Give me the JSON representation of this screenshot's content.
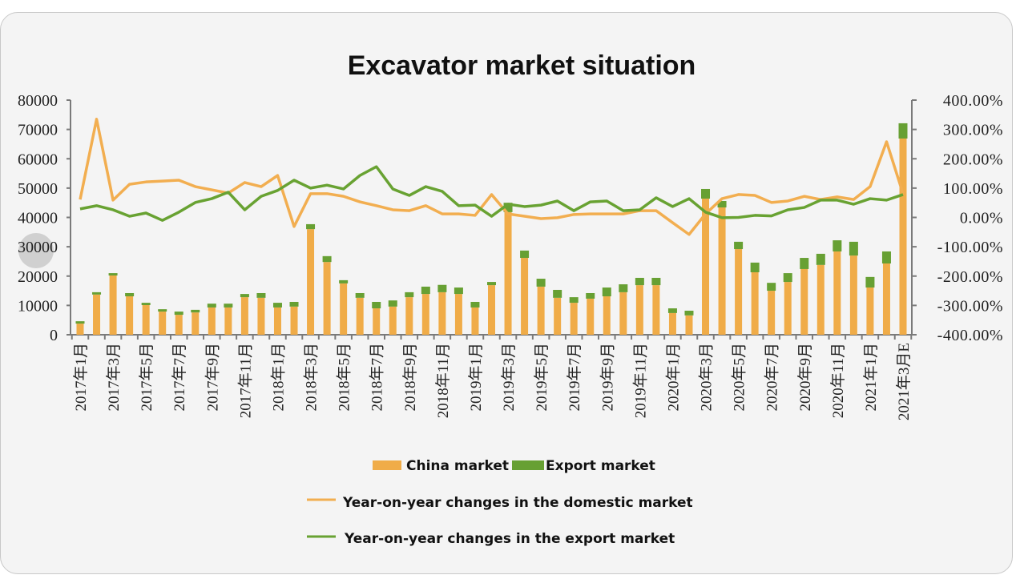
{
  "chart_data": {
    "type": "bar",
    "title": "Excavator market situation",
    "x_tick_labels": [
      "2017年1月",
      "2017年3月",
      "2017年5月",
      "2017年7月",
      "2017年9月",
      "2017年11月",
      "2018年1月",
      "2018年3月",
      "2018年5月",
      "2018年7月",
      "2018年9月",
      "2018年11月",
      "2019年1月",
      "2019年3月",
      "2019年5月",
      "2019年7月",
      "2019年9月",
      "2019年11月",
      "2020年1月",
      "2020年3月",
      "2020年5月",
      "2020年7月",
      "2020年9月",
      "2020年11月",
      "2021年1月",
      "2021年3月E"
    ],
    "left_axis": {
      "range": [
        0,
        80000
      ],
      "ticks": [
        "0",
        "10000",
        "20000",
        "30000",
        "40000",
        "50000",
        "60000",
        "70000",
        "80000"
      ]
    },
    "right_axis": {
      "range": [
        -400,
        400
      ],
      "unit": "%",
      "ticks": [
        "-400.00%",
        "-300.00%",
        "-200.00%",
        "-100.00%",
        "0.00%",
        "100.00%",
        "200.00%",
        "300.00%",
        "400.00%"
      ]
    },
    "bar_series": [
      {
        "name": "China market",
        "color": "#F0AC48",
        "stacked": true,
        "values": [
          3800,
          13700,
          20200,
          13100,
          10100,
          7900,
          6800,
          7600,
          9300,
          9300,
          12800,
          12600,
          9300,
          9600,
          36000,
          24800,
          17500,
          12600,
          9000,
          9600,
          12800,
          13900,
          14500,
          13900,
          9300,
          16900,
          41800,
          26200,
          16400,
          12600,
          10900,
          12300,
          13100,
          14500,
          16900,
          16900,
          7400,
          6600,
          46400,
          43400,
          29200,
          21300,
          15000,
          18000,
          22400,
          23800,
          28400,
          27000,
          16100,
          24300,
          66900
        ]
      },
      {
        "name": "Export market",
        "color": "#67A033",
        "stacked": true,
        "values": [
          800,
          800,
          800,
          1100,
          800,
          800,
          1100,
          900,
          1300,
          1300,
          1100,
          1600,
          1600,
          1600,
          1700,
          2000,
          1100,
          1600,
          2200,
          2100,
          1700,
          2500,
          2500,
          2200,
          1900,
          1100,
          3200,
          2500,
          2700,
          2700,
          1900,
          1900,
          3000,
          2700,
          2500,
          2500,
          1600,
          1600,
          3300,
          2200,
          2500,
          3300,
          2700,
          3000,
          3800,
          3800,
          3800,
          4700,
          3600,
          4100,
          5200
        ]
      }
    ],
    "line_series": [
      {
        "name": "Year-on-year changes in the domestic market",
        "color": "#F2AE50",
        "axis": "right",
        "values": [
          61,
          335,
          59,
          113,
          121,
          124,
          127,
          105,
          94,
          83,
          119,
          105,
          143,
          -31,
          81,
          81,
          72,
          53,
          40,
          26,
          23,
          40,
          12,
          12,
          7,
          78,
          12,
          4,
          -4,
          -1,
          10,
          12,
          12,
          12,
          23,
          23,
          -18,
          -58,
          12,
          64,
          78,
          75,
          51,
          56,
          72,
          61,
          70,
          61,
          105,
          258,
          81
        ]
      },
      {
        "name": "Year-on-year changes in the export market",
        "color": "#68A232",
        "axis": "right",
        "values": [
          29,
          40,
          26,
          4,
          15,
          -10,
          18,
          51,
          64,
          86,
          26,
          72,
          92,
          127,
          100,
          110,
          97,
          143,
          173,
          97,
          75,
          105,
          89,
          40,
          42,
          4,
          45,
          37,
          42,
          56,
          23,
          53,
          56,
          23,
          26,
          67,
          37,
          64,
          18,
          -1,
          0,
          7,
          5,
          26,
          34,
          59,
          59,
          45,
          64,
          59,
          78
        ]
      }
    ],
    "legend": {
      "placement": "bottom"
    },
    "grid": false
  }
}
